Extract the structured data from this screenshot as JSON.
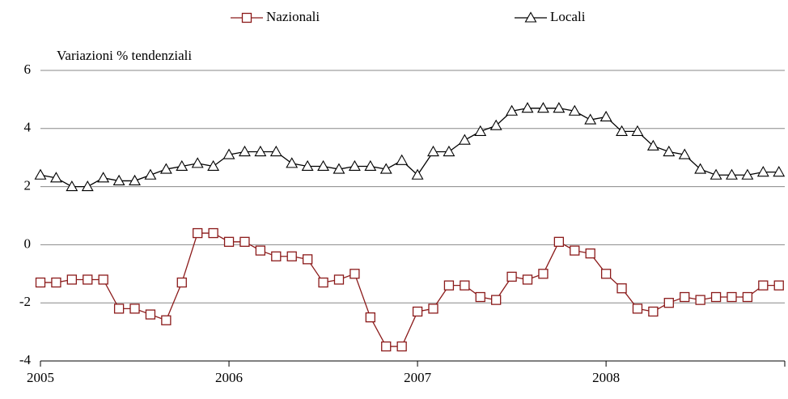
{
  "chart_data": {
    "type": "line",
    "y_axis_label": "Variazioni % tendenziali",
    "categories": [
      "2005",
      null,
      null,
      null,
      null,
      null,
      null,
      null,
      null,
      null,
      null,
      null,
      "2006",
      null,
      null,
      null,
      null,
      null,
      null,
      null,
      null,
      null,
      null,
      null,
      "2007",
      null,
      null,
      null,
      null,
      null,
      null,
      null,
      null,
      null,
      null,
      null,
      "2008",
      null,
      null,
      null,
      null,
      null,
      null,
      null,
      null,
      null,
      null,
      null
    ],
    "series": [
      {
        "name": "Nazionali",
        "color": "#8b1a1a",
        "marker": "square",
        "values": [
          -1.3,
          -1.3,
          -1.2,
          -1.2,
          -1.2,
          -2.2,
          -2.2,
          -2.4,
          -2.6,
          -1.3,
          0.4,
          0.4,
          0.1,
          0.1,
          -0.2,
          -0.4,
          -0.4,
          -0.5,
          -1.3,
          -1.2,
          -1.0,
          -2.5,
          -3.5,
          -3.5,
          -2.3,
          -2.2,
          -1.4,
          -1.4,
          -1.8,
          -1.9,
          -1.1,
          -1.2,
          -1.0,
          0.1,
          -0.2,
          -0.3,
          -1.0,
          -1.5,
          -2.2,
          -2.3,
          -2.0,
          -1.8,
          -1.9,
          -1.8,
          -1.8,
          -1.8,
          -1.4,
          -1.4
        ]
      },
      {
        "name": "Locali",
        "color": "#000000",
        "marker": "triangle",
        "values": [
          2.4,
          2.3,
          2.0,
          2.0,
          2.3,
          2.2,
          2.2,
          2.4,
          2.6,
          2.7,
          2.8,
          2.7,
          3.1,
          3.2,
          3.2,
          3.2,
          2.8,
          2.7,
          2.7,
          2.6,
          2.7,
          2.7,
          2.6,
          2.9,
          2.4,
          3.2,
          3.2,
          3.6,
          3.9,
          4.1,
          4.6,
          4.7,
          4.7,
          4.7,
          4.6,
          4.3,
          4.4,
          3.9,
          3.9,
          3.4,
          3.2,
          3.1,
          2.6,
          2.4,
          2.4,
          2.4,
          2.5,
          2.5
        ]
      }
    ],
    "ylim": [
      -4,
      6
    ],
    "yticks": [
      -4,
      -2,
      0,
      2,
      4,
      6
    ],
    "grid": true,
    "legend": "top"
  }
}
